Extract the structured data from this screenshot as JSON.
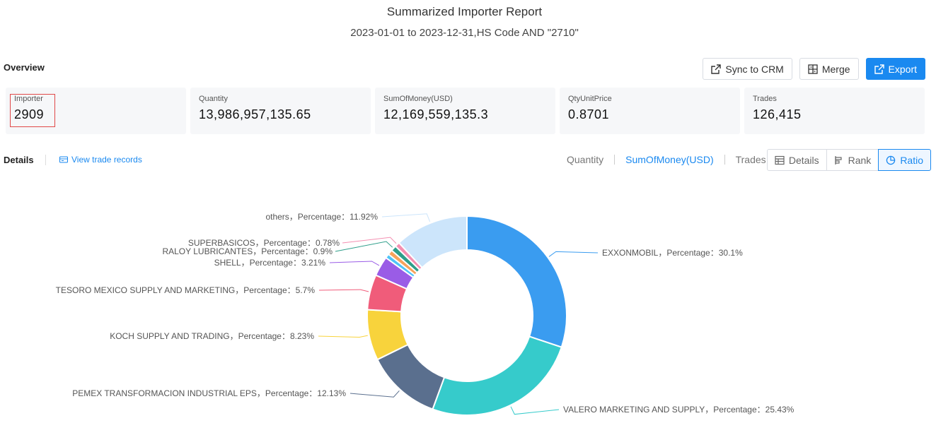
{
  "report": {
    "title": "Summarized Importer Report",
    "subtitle": "2023-01-01 to 2023-12-31,HS Code AND \"2710\""
  },
  "overview": {
    "label": "Overview",
    "buttons": {
      "sync": "Sync to CRM",
      "merge": "Merge",
      "export": "Export"
    },
    "stats": [
      {
        "label": "Importer",
        "value": "2909"
      },
      {
        "label": "Quantity",
        "value": "13,986,957,135.65"
      },
      {
        "label": "SumOfMoney(USD)",
        "value": "12,169,559,135.3"
      },
      {
        "label": "QtyUnitPrice",
        "value": "0.8701"
      },
      {
        "label": "Trades",
        "value": "126,415"
      }
    ]
  },
  "details": {
    "label": "Details",
    "view_records": "View trade records",
    "metric_tabs": [
      "Quantity",
      "SumOfMoney(USD)",
      "Trades"
    ],
    "active_metric": "SumOfMoney(USD)",
    "view_modes": [
      "Details",
      "Rank",
      "Ratio"
    ],
    "active_view": "Ratio"
  },
  "chart_data": {
    "type": "pie",
    "variant": "donut",
    "metric": "SumOfMoney(USD)",
    "slices": [
      {
        "name": "EXXONMOBIL",
        "label": "EXXONMOBIL，Percentage：30.1%",
        "value": 30.1,
        "color": "#3a9cf0"
      },
      {
        "name": "VALERO MARKETING AND SUPPLY",
        "label": "VALERO MARKETING AND SUPPLY，Percentage：25.43%",
        "value": 25.43,
        "color": "#36cbcb"
      },
      {
        "name": "PEMEX TRANSFORMACION INDUSTRIAL EPS",
        "label": "PEMEX TRANSFORMACION INDUSTRIAL EPS，Percentage：12.13%",
        "value": 12.13,
        "color": "#5a6f8e"
      },
      {
        "name": "KOCH SUPPLY AND TRADING",
        "label": "KOCH SUPPLY AND TRADING，Percentage：8.23%",
        "value": 8.23,
        "color": "#f8d33c"
      },
      {
        "name": "TESORO MEXICO SUPPLY AND MARKETING",
        "label": "TESORO MEXICO SUPPLY AND MARKETING，Percentage：5.7%",
        "value": 5.7,
        "color": "#f05c7a"
      },
      {
        "name": "SHELL",
        "label": "SHELL，Percentage：3.21%",
        "value": 3.21,
        "color": "#9a5ce6"
      },
      {
        "name": "",
        "label": "",
        "value": 0.7,
        "color": "#4fc3f7"
      },
      {
        "name": "",
        "label": "",
        "value": 0.8,
        "color": "#f7a35c"
      },
      {
        "name": "RALOY LUBRICANTES",
        "label": "RALOY LUBRICANTES，Percentage：0.9%",
        "value": 0.9,
        "color": "#2e9e8a"
      },
      {
        "name": "SUPERBASICOS",
        "label": "SUPERBASICOS，Percentage：0.78%",
        "value": 0.78,
        "color": "#f48fb1"
      },
      {
        "name": "others",
        "label": "others，Percentage：11.92%",
        "value": 11.92,
        "color": "#cce5fb"
      }
    ]
  }
}
